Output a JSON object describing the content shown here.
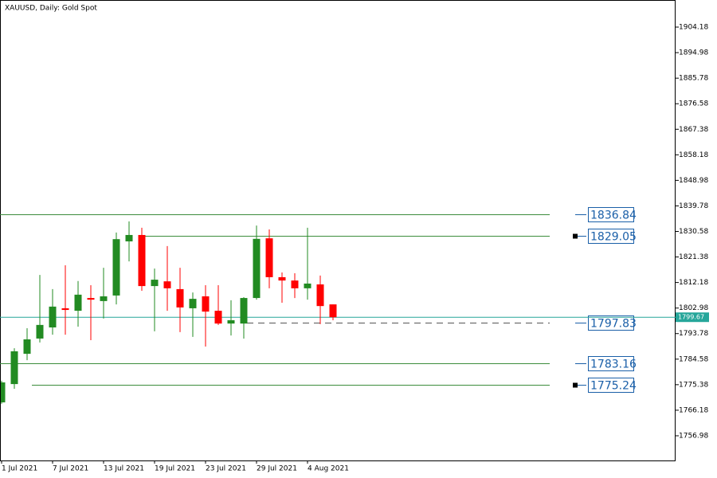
{
  "chart_data": {
    "type": "candlestick",
    "title": "XAUUSD, Daily:  Gold Spot",
    "categories": [
      "1 Jul 2021",
      null,
      null,
      null,
      "7 Jul 2021",
      null,
      null,
      null,
      "13 Jul 2021",
      null,
      null,
      null,
      "19 Jul 2021",
      null,
      null,
      null,
      "23 Jul 2021",
      null,
      null,
      null,
      "29 Jul 2021",
      null,
      null,
      null,
      "4 Aug 2021",
      null,
      null
    ],
    "open": [
      1769.0,
      1775.6,
      1786.5,
      1792.0,
      1796.0,
      1802.9,
      1802.0,
      1806.6,
      1805.5,
      1807.5,
      1827.0,
      1829.3,
      1810.9,
      1812.6,
      1809.8,
      1802.9,
      1807.2,
      1802.0,
      1797.4,
      1797.4,
      1806.6,
      1828.1,
      1814.1,
      1812.9,
      1810.1,
      1811.5,
      1804.3
    ],
    "high": [
      1776.8,
      1788.5,
      1795.7,
      1814.9,
      1809.8,
      1818.4,
      1812.7,
      1811.2,
      1817.5,
      1830.2,
      1834.2,
      1831.9,
      1817.2,
      1825.3,
      1817.5,
      1808.6,
      1811.2,
      1811.2,
      1805.8,
      1806.9,
      1832.7,
      1831.3,
      1815.8,
      1815.5,
      1831.9,
      1814.7,
      1804.3
    ],
    "low": [
      1768.5,
      1773.9,
      1784.2,
      1790.6,
      1793.4,
      1793.4,
      1796.3,
      1791.4,
      1799.2,
      1804.3,
      1819.8,
      1809.2,
      1794.6,
      1802.0,
      1794.3,
      1792.6,
      1789.1,
      1796.9,
      1793.1,
      1792.0,
      1806.0,
      1810.1,
      1804.9,
      1806.6,
      1806.0,
      1797.2,
      1798.6
    ],
    "close": [
      1776.2,
      1787.4,
      1791.7,
      1796.9,
      1803.5,
      1802.3,
      1807.8,
      1806.0,
      1807.2,
      1827.8,
      1829.3,
      1810.9,
      1813.2,
      1810.1,
      1803.2,
      1806.3,
      1801.7,
      1797.4,
      1798.6,
      1806.6,
      1827.9,
      1814.1,
      1812.9,
      1810.1,
      1811.8,
      1803.7,
      1799.67
    ],
    "up_color": "#228b22",
    "down_color": "#ff0000",
    "ylim": [
      1748.08,
      1913.94
    ],
    "yticks": [
      1904.18,
      1894.98,
      1885.78,
      1876.58,
      1867.38,
      1858.18,
      1848.98,
      1839.78,
      1830.58,
      1821.38,
      1812.18,
      1802.98,
      1793.78,
      1784.58,
      1775.38,
      1766.18,
      1756.98
    ],
    "levels": [
      1836.84,
      1829.05,
      1797.83,
      1783.16,
      1775.24
    ],
    "level_color": "#3c8c3c",
    "last_price": 1799.67,
    "last_price_color": "#26a69a"
  }
}
